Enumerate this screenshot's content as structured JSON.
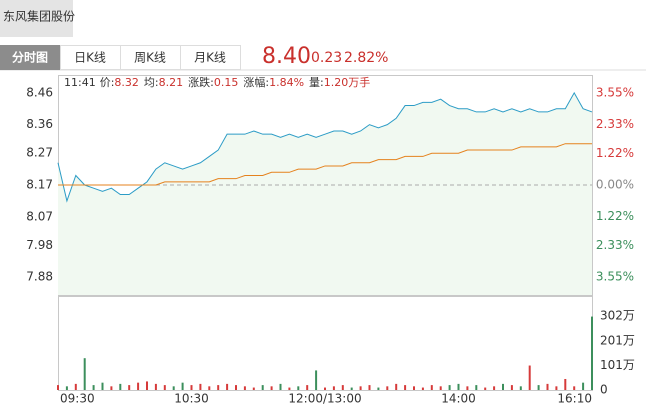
{
  "header": {
    "stock_name": "东风集团股份",
    "tabs": [
      "分时图",
      "日K线",
      "周K线",
      "月K线"
    ],
    "price": "8.40",
    "change": "0.23",
    "change_pct": "2.82%"
  },
  "info": {
    "time": "11:41",
    "items": [
      {
        "label": "价:",
        "value": "8.32"
      },
      {
        "label": "均:",
        "value": "8.21"
      },
      {
        "label": "涨跌:",
        "value": "0.15"
      },
      {
        "label": "涨幅:",
        "value": "1.84%"
      },
      {
        "label": "量:",
        "value": "1.20万手"
      }
    ]
  },
  "chart_data": [
    {
      "type": "line",
      "ylim": [
        7.824,
        8.513
      ],
      "yticks": [
        8.46,
        8.36,
        8.27,
        8.17,
        8.07,
        7.98,
        7.88
      ],
      "y2lim": [
        -4.24,
        4.2
      ],
      "y2ticks": [
        {
          "value": 3.55,
          "label": "3.55%"
        },
        {
          "value": 2.33,
          "label": "2.33%"
        },
        {
          "value": 1.22,
          "label": "1.22%"
        },
        {
          "value": 0,
          "label": "0.00%"
        },
        {
          "value": -1.22,
          "label": "1.22%"
        },
        {
          "value": -2.33,
          "label": "2.33%"
        },
        {
          "value": -3.55,
          "label": "3.55%"
        }
      ],
      "xlim": [
        0,
        60
      ],
      "area_color": "#f1f9f1",
      "up_color": "#d63a3a",
      "flat_color": "#888888",
      "down_color": "#3c8f5c",
      "series": [
        {
          "color": "#2c9cc6",
          "values": [
            8.24,
            8.12,
            8.2,
            8.17,
            8.16,
            8.15,
            8.16,
            8.14,
            8.14,
            8.16,
            8.18,
            8.22,
            8.24,
            8.23,
            8.22,
            8.23,
            8.24,
            8.26,
            8.28,
            8.33,
            8.33,
            8.33,
            8.34,
            8.33,
            8.33,
            8.32,
            8.33,
            8.32,
            8.33,
            8.32,
            8.33,
            8.34,
            8.34,
            8.33,
            8.34,
            8.36,
            8.35,
            8.36,
            8.38,
            8.42,
            8.42,
            8.43,
            8.43,
            8.44,
            8.42,
            8.41,
            8.41,
            8.4,
            8.4,
            8.41,
            8.4,
            8.41,
            8.4,
            8.41,
            8.4,
            8.4,
            8.41,
            8.41,
            8.46,
            8.41,
            8.4
          ]
        },
        {
          "color": "#e5821e",
          "values": [
            8.17,
            8.17,
            8.17,
            8.17,
            8.17,
            8.17,
            8.17,
            8.17,
            8.17,
            8.17,
            8.17,
            8.17,
            8.18,
            8.18,
            8.18,
            8.18,
            8.18,
            8.18,
            8.19,
            8.19,
            8.19,
            8.2,
            8.2,
            8.2,
            8.21,
            8.21,
            8.21,
            8.22,
            8.22,
            8.22,
            8.23,
            8.23,
            8.23,
            8.24,
            8.24,
            8.24,
            8.25,
            8.25,
            8.25,
            8.26,
            8.26,
            8.26,
            8.27,
            8.27,
            8.27,
            8.27,
            8.28,
            8.28,
            8.28,
            8.28,
            8.28,
            8.28,
            8.29,
            8.29,
            8.29,
            8.29,
            8.29,
            8.3,
            8.3,
            8.3,
            8.3
          ]
        }
      ]
    },
    {
      "type": "bar",
      "ylim": [
        0,
        380
      ],
      "yticks": [
        0,
        {
          "value": 101,
          "label": "101万"
        },
        {
          "value": 201,
          "label": "201万"
        },
        {
          "value": 302,
          "label": "302万"
        }
      ],
      "xlim": [
        0,
        60
      ],
      "xticks": [
        {
          "value": 0,
          "label": "09:30"
        },
        {
          "value": 15,
          "label": "10:30"
        },
        {
          "value": 30,
          "label": "12:00/13:00"
        },
        {
          "value": 45,
          "label": "14:00"
        },
        {
          "value": 60,
          "label": "16:10"
        }
      ],
      "up_color": "#d63a3a",
      "down_color": "#3c8f5c",
      "values": [
        20,
        15,
        25,
        130,
        20,
        30,
        15,
        25,
        20,
        30,
        35,
        25,
        20,
        15,
        30,
        20,
        25,
        15,
        20,
        25,
        20,
        15,
        10,
        20,
        15,
        25,
        10,
        15,
        20,
        80,
        10,
        15,
        20,
        10,
        15,
        20,
        10,
        15,
        25,
        20,
        15,
        10,
        20,
        15,
        20,
        25,
        15,
        20,
        10,
        15,
        25,
        20,
        15,
        100,
        20,
        25,
        15,
        45,
        15,
        30,
        300
      ]
    }
  ]
}
